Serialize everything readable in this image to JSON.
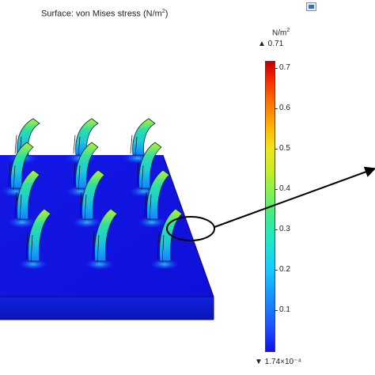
{
  "plot": {
    "title_prefix": "Surface: von Mises stress (N/m",
    "title_exp": "2",
    "title_suffix": ")"
  },
  "colorbar": {
    "unit_base": "N/m",
    "unit_exp": "2",
    "max_label": "▲ 0.71",
    "min_label": "▼ 1.74×10⁻⁴",
    "ticks": [
      "0.7",
      "0.6",
      "0.5",
      "0.4",
      "0.3",
      "0.2",
      "0.1"
    ]
  },
  "colors": {
    "substrate": "#1010e8",
    "pillar_mid": "#20c8d8",
    "pillar_high": "#a8f040",
    "annotation": "#000000"
  }
}
